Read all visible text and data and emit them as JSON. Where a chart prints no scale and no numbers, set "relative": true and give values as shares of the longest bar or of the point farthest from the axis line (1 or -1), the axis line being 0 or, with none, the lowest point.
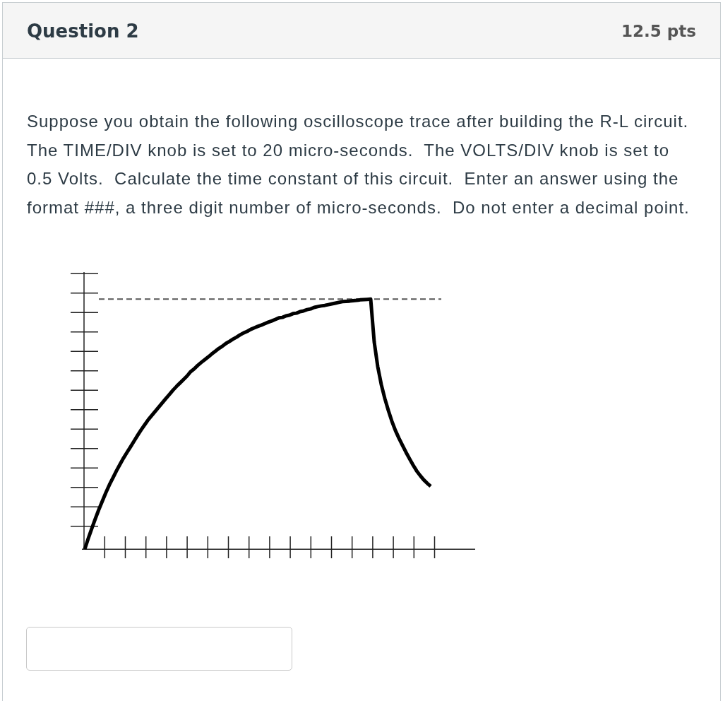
{
  "chart_data": {
    "type": "line",
    "title": "Question 2",
    "subtitle": "Suppose you obtain the following oscilloscope trace after building the R-L circuit.  The TIME/DIV knob is set to 20 micro-seconds.  The VOLTS/DIV knob is set to 0.5 Volts.  Calculate the time constant of this circuit.  Enter an answer using the format ###, a three digit number of micro-seconds.  Do not enter a decimal point.",
    "annotations": [
      "12.5 pts"
    ],
    "relative": true,
    "categories": [
      null,
      null,
      null,
      null,
      null,
      null,
      null,
      null,
      null,
      null,
      null,
      null,
      null,
      null,
      null,
      null,
      null,
      null,
      null,
      null,
      null,
      null,
      null,
      null,
      null,
      null,
      null,
      null,
      null,
      null,
      null,
      null,
      null,
      null,
      null,
      null,
      null,
      null,
      null,
      null,
      null,
      null,
      null,
      null,
      null,
      null,
      null,
      null,
      null,
      null,
      null,
      null,
      null,
      null,
      null,
      null,
      null,
      null,
      null,
      null,
      null,
      null,
      null,
      null,
      null,
      null,
      null,
      null,
      null,
      null,
      null,
      null,
      null,
      null,
      null,
      null,
      null,
      null,
      null,
      null,
      null,
      null,
      null,
      null,
      null,
      null,
      null,
      null,
      null,
      null,
      null,
      null,
      null,
      null,
      null,
      null,
      null,
      null,
      null
    ],
    "color": "#000000",
    "values": [
      0,
      0.043,
      0.083,
      0.122,
      0.159,
      0.193,
      0.227,
      0.258,
      0.286,
      0.314,
      0.34,
      0.365,
      0.388,
      0.41,
      0.433,
      0.456,
      0.478,
      0.498,
      0.518,
      0.535,
      0.552,
      0.569,
      0.586,
      0.603,
      0.619,
      0.636,
      0.651,
      0.665,
      0.679,
      0.693,
      0.71,
      0.721,
      0.735,
      0.747,
      0.758,
      0.769,
      0.781,
      0.792,
      0.803,
      0.812,
      0.823,
      0.831,
      0.84,
      0.848,
      0.857,
      0.865,
      0.871,
      0.879,
      0.885,
      0.891,
      0.896,
      0.902,
      0.908,
      0.913,
      0.919,
      0.925,
      0.927,
      0.933,
      0.936,
      0.942,
      0.944,
      0.95,
      0.953,
      0.958,
      0.961,
      0.967,
      0.97,
      0.973,
      0.975,
      0.978,
      0.981,
      0.984,
      0.987,
      0.99,
      0.991,
      0.992,
      0.994,
      0.995,
      0.997,
      0.998,
      0.999,
      1,
      0.829,
      0.73,
      0.659,
      0.603,
      0.555,
      0.512,
      0.475,
      0.444,
      0.416,
      0.388,
      0.362,
      0.337,
      0.314,
      0.295,
      0.278,
      0.264,
      0.252
    ],
    "ref_lines": [
      {
        "axis": "y",
        "value": 1,
        "color": "#555555",
        "line_style": "dashed"
      }
    ]
  }
}
